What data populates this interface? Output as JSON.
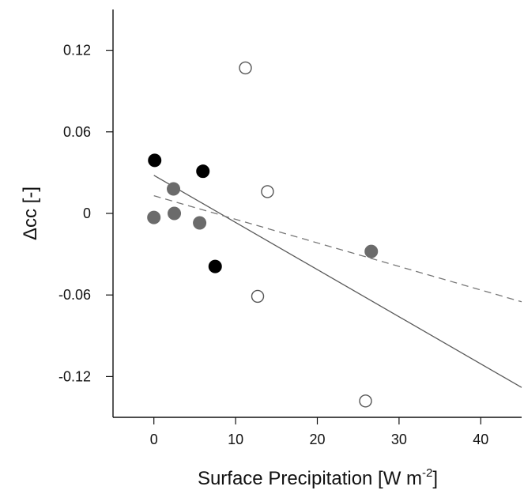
{
  "chart_data": {
    "type": "scatter",
    "title": "",
    "xlabel": {
      "main": "Surface Precipitation [W m",
      "sup": "-2",
      "end": "]"
    },
    "ylabel": "Δcc [-]",
    "xlim": [
      -5,
      45
    ],
    "ylim": [
      -0.15,
      0.15
    ],
    "xticks": [
      0,
      10,
      20,
      30,
      40
    ],
    "yticks": [
      -0.12,
      -0.06,
      0,
      0.06,
      0.12
    ],
    "xtick_labels": [
      "0",
      "10",
      "20",
      "30",
      "40"
    ],
    "ytick_labels": [
      "-0.12",
      "-0.06",
      "0",
      "0.06",
      "0.12"
    ],
    "grid": false,
    "legend": "none",
    "series": [
      {
        "marker": "filled-black",
        "color": "#000000",
        "points": [
          {
            "x": 0.1,
            "y": 0.039
          },
          {
            "x": 6.0,
            "y": 0.031
          },
          {
            "x": 7.5,
            "y": -0.039
          }
        ]
      },
      {
        "marker": "filled-gray",
        "color": "#6b6b6b",
        "points": [
          {
            "x": 0.0,
            "y": -0.003
          },
          {
            "x": 2.4,
            "y": 0.018
          },
          {
            "x": 2.5,
            "y": 0.0
          },
          {
            "x": 5.6,
            "y": -0.007
          },
          {
            "x": 26.6,
            "y": -0.028
          }
        ]
      },
      {
        "marker": "open",
        "color": "#555555",
        "points": [
          {
            "x": 11.2,
            "y": 0.107
          },
          {
            "x": 13.9,
            "y": 0.016
          },
          {
            "x": 12.7,
            "y": -0.061
          },
          {
            "x": 25.9,
            "y": -0.138
          }
        ]
      }
    ],
    "lines": [
      {
        "style": "solid",
        "color": "#5a5a5a",
        "x": [
          0,
          45
        ],
        "y": [
          0.028,
          -0.128
        ]
      },
      {
        "style": "dashed",
        "color": "#777777",
        "x": [
          0,
          45
        ],
        "y": [
          0.013,
          -0.065
        ]
      }
    ]
  }
}
